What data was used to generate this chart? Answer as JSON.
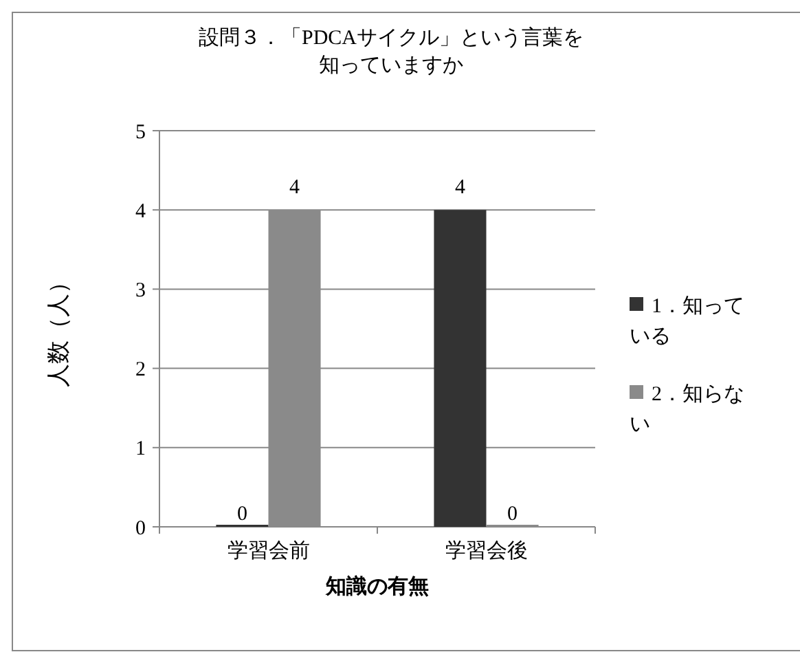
{
  "chart_data": {
    "type": "bar",
    "title": "設問３．「PDCAサイクル」という言葉を知っていますか",
    "xlabel": "知識の有無",
    "ylabel": "人数（人）",
    "categories": [
      "学習会前",
      "学習会後"
    ],
    "series": [
      {
        "name": "1．知っている",
        "color": "#333333",
        "values": [
          0,
          4
        ]
      },
      {
        "name": "2．知らない",
        "color": "#8a8a8a",
        "values": [
          4,
          0
        ]
      }
    ],
    "ylim": [
      0,
      5
    ],
    "yticks": [
      0,
      1,
      2,
      3,
      4,
      5
    ],
    "grid": "y",
    "legend": "right",
    "data_labels": true
  }
}
